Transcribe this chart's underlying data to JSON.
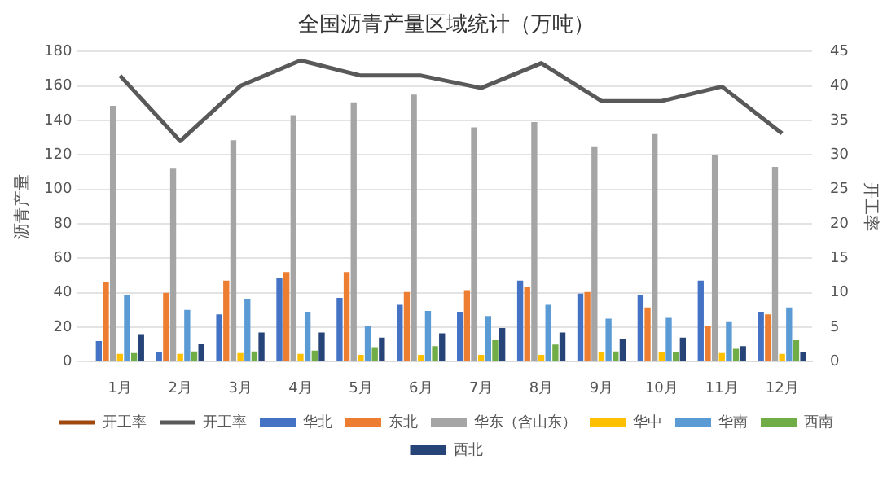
{
  "chart_data": {
    "type": "bar",
    "title": "全国沥青产量区域统计（万吨）",
    "ylabel": "沥青产量",
    "y2label": "开工率",
    "categories": [
      "1月",
      "2月",
      "3月",
      "4月",
      "5月",
      "6月",
      "7月",
      "8月",
      "9月",
      "10月",
      "11月",
      "12月"
    ],
    "series": [
      {
        "name": "华北",
        "color": "#4472c4",
        "values": [
          12,
          5.6,
          27.5,
          48.5,
          37,
          33,
          29,
          47,
          39.5,
          38.5,
          47,
          29
        ]
      },
      {
        "name": "东北",
        "color": "#ed7d31",
        "values": [
          46.5,
          40,
          47,
          52,
          52,
          40.5,
          41.5,
          43.5,
          40.5,
          31.5,
          21,
          27.5
        ]
      },
      {
        "name": "华东（含山东）",
        "color": "#a5a5a5",
        "values": [
          148.5,
          112,
          128.5,
          143,
          150.5,
          155,
          136,
          139,
          125,
          132,
          120,
          113
        ]
      },
      {
        "name": "华中",
        "color": "#ffc000",
        "values": [
          4.5,
          4.5,
          5,
          4.5,
          4,
          4,
          4,
          4,
          5.5,
          5.5,
          5,
          4.5
        ]
      },
      {
        "name": "华南",
        "color": "#5b9bd5",
        "values": [
          38.5,
          30,
          36.5,
          29,
          21,
          29.5,
          26.5,
          33,
          25,
          25.5,
          23.5,
          31.5
        ]
      },
      {
        "name": "西南",
        "color": "#70ad47",
        "values": [
          5,
          6,
          6,
          6.5,
          8.5,
          9,
          12.5,
          10,
          6,
          5.5,
          7.5,
          12.5
        ]
      },
      {
        "name": "西北",
        "color": "#264478",
        "values": [
          16,
          10.5,
          17,
          17,
          14,
          16.5,
          19.5,
          17,
          13,
          14,
          9,
          5.5
        ]
      },
      {
        "name": "开工率",
        "type": "line",
        "axis": "y2",
        "color": "#9e480e",
        "values": [
          null,
          null,
          null,
          null,
          null,
          null,
          null,
          null,
          null,
          null,
          null,
          null
        ]
      },
      {
        "name": "开工率",
        "type": "line",
        "axis": "y2",
        "color": "#595959",
        "values": [
          41.5,
          32,
          40,
          43.7,
          41.5,
          41.5,
          39.7,
          43.3,
          37.8,
          37.8,
          39.9,
          33.1
        ]
      }
    ],
    "ylim": [
      0,
      180
    ],
    "yticks": [
      0,
      20,
      40,
      60,
      80,
      100,
      120,
      140,
      160,
      180
    ],
    "y2lim": [
      0,
      45
    ],
    "y2ticks": [
      0,
      5,
      10,
      15,
      20,
      25,
      30,
      35,
      40,
      45
    ],
    "grid": "y",
    "legend": "bottom",
    "marker": "none"
  }
}
